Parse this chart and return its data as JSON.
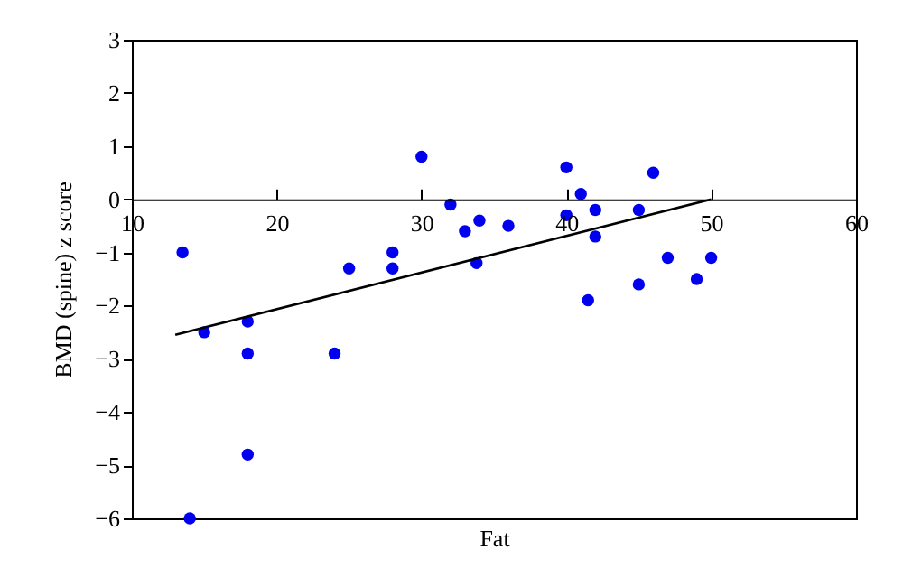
{
  "chart_data": {
    "type": "scatter",
    "xlabel": "Fat",
    "ylabel": "BMD (spine) z score",
    "xlim": [
      10,
      60
    ],
    "xticks": [
      10,
      20,
      30,
      40,
      50,
      60
    ],
    "ylim": [
      -6,
      3
    ],
    "yticks": [
      -6,
      -5,
      -4,
      -3,
      -2,
      -1,
      0,
      1,
      2,
      3
    ],
    "grid": false,
    "series": [
      {
        "marker": "circle",
        "color": "#0000ee",
        "x": [
          13.5,
          14,
          15,
          18,
          18,
          18,
          24,
          25,
          28,
          28,
          30,
          32,
          33,
          34,
          33.8,
          36,
          40,
          40,
          41,
          41.5,
          42,
          42,
          45,
          45,
          46,
          47,
          49,
          50
        ],
        "values": [
          -1,
          -6,
          -2.5,
          -2.3,
          -2.9,
          -4.8,
          -2.9,
          -1.3,
          -1,
          -1.3,
          0.8,
          -0.1,
          -0.6,
          -0.4,
          -1.2,
          -0.5,
          0.6,
          -0.3,
          0.1,
          -1.9,
          -0.2,
          -0.7,
          -0.2,
          -1.6,
          0.5,
          -1.1,
          -1.5,
          -1.1
        ]
      },
      {
        "type": "line",
        "color": "#000000",
        "x": [
          13,
          50
        ],
        "values": [
          -2.55,
          0
        ]
      }
    ]
  }
}
